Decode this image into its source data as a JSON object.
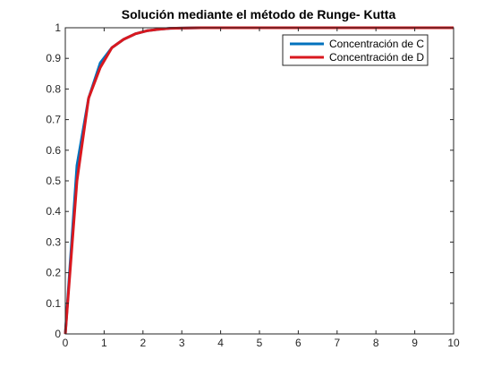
{
  "chart_data": {
    "type": "line",
    "title": "Solución mediante el método de Runge- Kutta",
    "xlabel": "",
    "ylabel": "",
    "xlim": [
      0,
      10
    ],
    "ylim": [
      0,
      1
    ],
    "x_ticks": [
      "0",
      "1",
      "2",
      "3",
      "4",
      "5",
      "6",
      "7",
      "8",
      "9",
      "10"
    ],
    "y_ticks": [
      "0",
      "0.1",
      "0.2",
      "0.3",
      "0.4",
      "0.5",
      "0.6",
      "0.7",
      "0.8",
      "0.9",
      "1"
    ],
    "grid": false,
    "legend_position": "top-right",
    "series": [
      {
        "name": "Concentración de C",
        "color": "#0072BD",
        "x": [
          0,
          0.3,
          0.6,
          0.9,
          1.2,
          1.5,
          1.8,
          2.1,
          2.4,
          2.7,
          3.0,
          3.5,
          4.0,
          5.0,
          6.0,
          7.0,
          8.0,
          9.0,
          10.0
        ],
        "y": [
          0,
          0.55,
          0.77,
          0.885,
          0.935,
          0.962,
          0.98,
          0.99,
          0.995,
          0.998,
          0.999,
          1.0,
          1.0,
          1.0,
          1.0,
          1.0,
          1.0,
          1.0,
          1.0
        ]
      },
      {
        "name": "Concentración de D",
        "color": "#D9181F",
        "x": [
          0,
          0.3,
          0.6,
          0.9,
          1.2,
          1.5,
          1.8,
          2.1,
          2.4,
          2.7,
          3.0,
          3.5,
          4.0,
          5.0,
          6.0,
          7.0,
          8.0,
          9.0,
          10.0
        ],
        "y": [
          0,
          0.5,
          0.77,
          0.87,
          0.935,
          0.962,
          0.98,
          0.99,
          0.995,
          0.998,
          0.999,
          1.0,
          1.0,
          1.0,
          1.0,
          1.0,
          1.0,
          1.0,
          1.0
        ]
      }
    ]
  }
}
